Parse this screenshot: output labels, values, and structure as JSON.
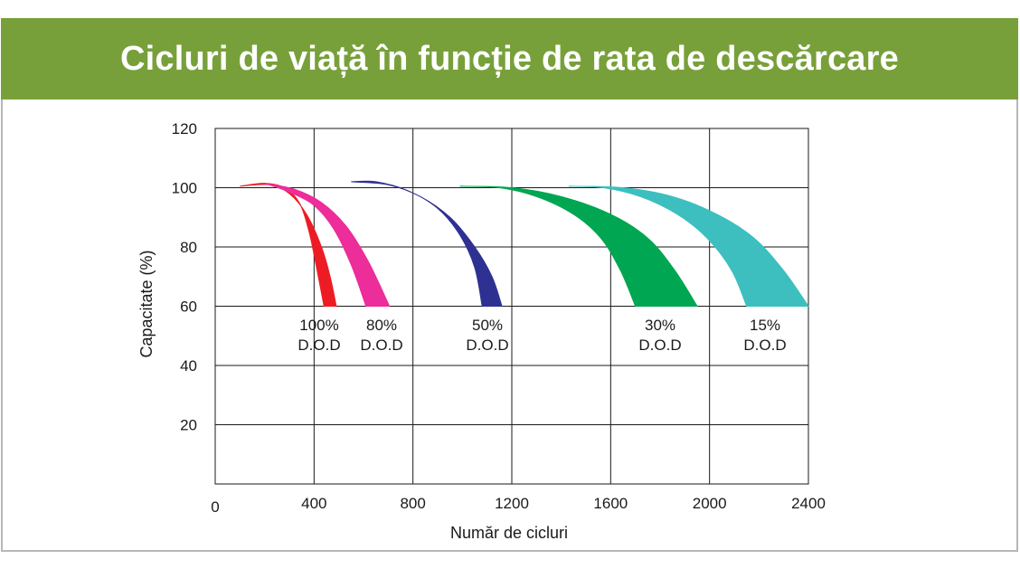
{
  "chart_data": {
    "type": "area",
    "title": "Cicluri de viață în funcție de rata de descărcare",
    "xlabel": "Număr de cicluri",
    "ylabel": "Capacitate (%)",
    "xlim": [
      0,
      2400
    ],
    "ylim": [
      0,
      120
    ],
    "x_ticks": [
      0,
      400,
      800,
      1200,
      1600,
      2000,
      2400
    ],
    "y_ticks": [
      20,
      40,
      60,
      80,
      100,
      120
    ],
    "grid": true,
    "series": [
      {
        "name": "100% D.O.D",
        "label_line1": "100%",
        "label_line2": "D.O.D",
        "color": "#ed1c24",
        "upper": [
          [
            100,
            100.5
          ],
          [
            200,
            101.5
          ],
          [
            280,
            100
          ],
          [
            340,
            95
          ],
          [
            380,
            85
          ],
          [
            410,
            73
          ],
          [
            440,
            60
          ]
        ],
        "lower": [
          [
            100,
            100.5
          ],
          [
            220,
            101
          ],
          [
            300,
            98
          ],
          [
            370,
            91
          ],
          [
            430,
            80
          ],
          [
            465,
            70
          ],
          [
            490,
            60
          ]
        ]
      },
      {
        "name": "80% D.O.D",
        "label_line1": "80%",
        "label_line2": "D.O.D",
        "color": "#ec2d9a",
        "upper": [
          [
            200,
            101.5
          ],
          [
            300,
            98.5
          ],
          [
            400,
            94
          ],
          [
            480,
            86
          ],
          [
            550,
            74
          ],
          [
            610,
            60
          ]
        ],
        "lower": [
          [
            200,
            101.5
          ],
          [
            320,
            99.5
          ],
          [
            430,
            95
          ],
          [
            530,
            87
          ],
          [
            620,
            75
          ],
          [
            705,
            60
          ]
        ]
      },
      {
        "name": "50% D.O.D",
        "label_line1": "50%",
        "label_line2": "D.O.D",
        "color": "#2e3192",
        "upper": [
          [
            550,
            102
          ],
          [
            650,
            102
          ],
          [
            780,
            99
          ],
          [
            900,
            93
          ],
          [
            990,
            84
          ],
          [
            1050,
            73
          ],
          [
            1080,
            60
          ]
        ],
        "lower": [
          [
            550,
            102
          ],
          [
            700,
            101
          ],
          [
            830,
            97
          ],
          [
            950,
            90
          ],
          [
            1050,
            80
          ],
          [
            1120,
            70
          ],
          [
            1160,
            60
          ]
        ]
      },
      {
        "name": "30% D.O.D",
        "label_line1": "30%",
        "label_line2": "D.O.D",
        "color": "#00a651",
        "upper": [
          [
            990,
            100.5
          ],
          [
            1150,
            100
          ],
          [
            1300,
            97
          ],
          [
            1450,
            91
          ],
          [
            1560,
            83
          ],
          [
            1640,
            72
          ],
          [
            1700,
            60
          ]
        ],
        "lower": [
          [
            990,
            100.5
          ],
          [
            1200,
            100
          ],
          [
            1400,
            97
          ],
          [
            1600,
            91
          ],
          [
            1750,
            83
          ],
          [
            1860,
            72
          ],
          [
            1950,
            60
          ]
        ]
      },
      {
        "name": "15% D.O.D",
        "label_line1": "15%",
        "label_line2": "D.O.D",
        "color": "#3dbfbf",
        "upper": [
          [
            1430,
            100.5
          ],
          [
            1570,
            100
          ],
          [
            1720,
            97
          ],
          [
            1870,
            91
          ],
          [
            1990,
            83
          ],
          [
            2090,
            72
          ],
          [
            2150,
            60
          ]
        ],
        "lower": [
          [
            1430,
            100.5
          ],
          [
            1650,
            100
          ],
          [
            1850,
            97
          ],
          [
            2030,
            91
          ],
          [
            2180,
            83
          ],
          [
            2300,
            72
          ],
          [
            2400,
            60
          ]
        ]
      }
    ]
  }
}
